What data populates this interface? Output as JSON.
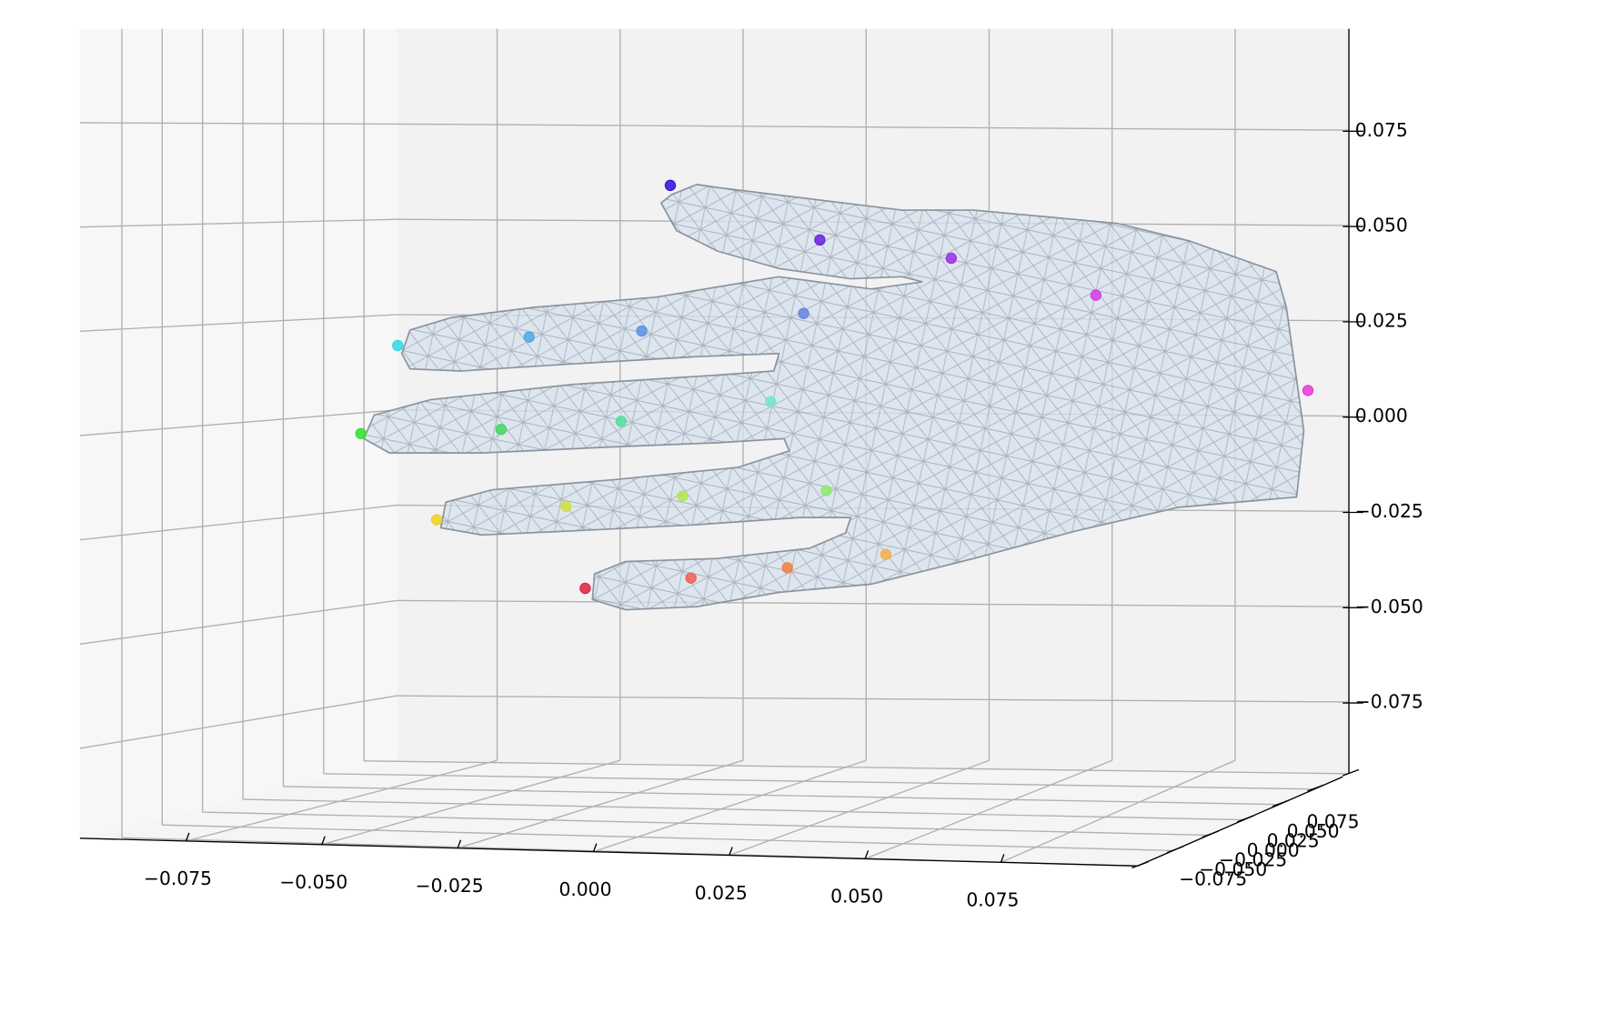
{
  "chart_data": {
    "type": "scatter3d",
    "xlim": [
      -0.1,
      0.1
    ],
    "ylim": [
      -0.1,
      0.1
    ],
    "zlim": [
      -0.1,
      0.1
    ],
    "xticks": [
      {
        "value": -0.075,
        "label": "−0.075"
      },
      {
        "value": -0.05,
        "label": "−0.050"
      },
      {
        "value": -0.025,
        "label": "−0.025"
      },
      {
        "value": 0,
        "label": "0.000"
      },
      {
        "value": 0.025,
        "label": "0.025"
      },
      {
        "value": 0.05,
        "label": "0.050"
      },
      {
        "value": 0.075,
        "label": "0.075"
      }
    ],
    "yticks": [
      {
        "value": -0.075,
        "label": "−0.075"
      },
      {
        "value": -0.05,
        "label": "−0.050"
      },
      {
        "value": -0.025,
        "label": "−0.025"
      },
      {
        "value": 0,
        "label": "0.000"
      },
      {
        "value": 0.025,
        "label": "0.025"
      },
      {
        "value": 0.05,
        "label": "0.050"
      },
      {
        "value": 0.075,
        "label": "0.075"
      }
    ],
    "zticks": [
      {
        "value": -0.075,
        "label": "−0.075"
      },
      {
        "value": -0.05,
        "label": "−0.050"
      },
      {
        "value": -0.025,
        "label": "−0.025"
      },
      {
        "value": 0,
        "label": "0.000"
      },
      {
        "value": 0.025,
        "label": "0.025"
      },
      {
        "value": 0.05,
        "label": "0.050"
      },
      {
        "value": 0.075,
        "label": "0.075"
      }
    ],
    "grid": true,
    "x": [
      0.0898,
      0.0467,
      0.0173,
      -0.0094,
      -0.0398,
      -0.0127,
      -0.0456,
      -0.0685,
      -0.0952,
      -0.0194,
      -0.0498,
      -0.0742,
      -0.1027,
      -0.0081,
      -0.0373,
      -0.061,
      -0.0873,
      0.004,
      -0.016,
      -0.0356,
      -0.0571
    ],
    "z": [
      0.0051,
      0.0301,
      0.0398,
      0.0446,
      0.0589,
      0.0253,
      0.0207,
      0.0191,
      0.0169,
      0.0022,
      -0.003,
      -0.0051,
      -0.0062,
      -0.0212,
      -0.0226,
      -0.0253,
      -0.0288,
      -0.0379,
      -0.0414,
      -0.0441,
      -0.0468
    ],
    "colors": [
      "#e83ad8",
      "#d83ae8",
      "#9a30e0",
      "#6a20e0",
      "#2a10d8",
      "#6a80e0",
      "#5a90e0",
      "#50a8e0",
      "#30d8e8",
      "#70e8d0",
      "#50e0a0",
      "#40d860",
      "#30e030",
      "#90e870",
      "#b0e850",
      "#d0e040",
      "#f0d020",
      "#f0b050",
      "#f08040",
      "#f06050",
      "#e02040"
    ]
  }
}
